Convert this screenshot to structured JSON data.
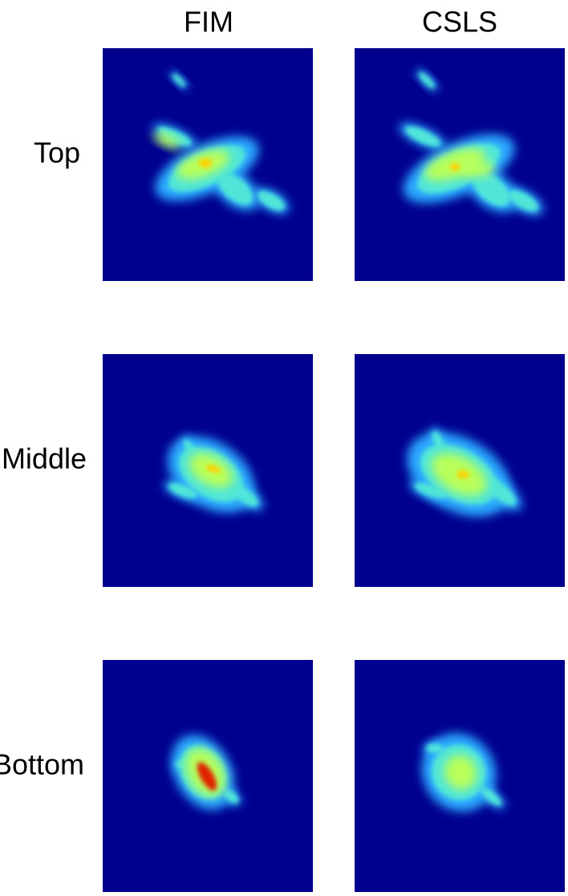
{
  "columns": [
    "FIM",
    "CSLS"
  ],
  "rows": [
    "Top",
    "Middle",
    "Bottom"
  ]
}
